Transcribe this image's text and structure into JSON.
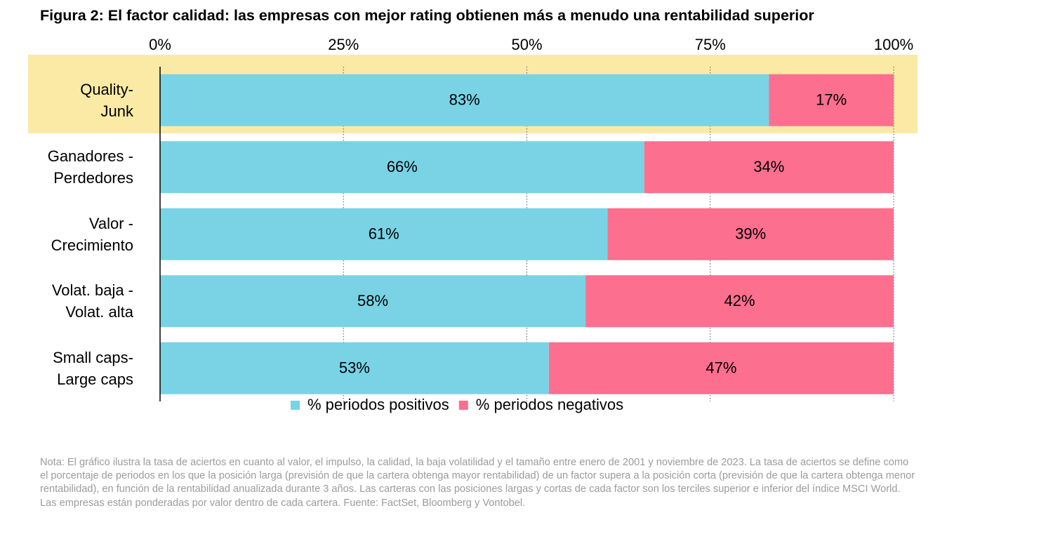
{
  "chart_data": {
    "type": "stacked-bar-horizontal",
    "title": "Figura 2: El factor calidad: las empresas con mejor rating obtienen más a menudo una rentabilidad superior",
    "categories": [
      "Quality-\nJunk",
      "Ganadores -\nPerdedores",
      "Valor -\nCrecimiento",
      "Volat. baja  -\nVolat. alta",
      "Small caps-\nLarge caps"
    ],
    "series": [
      {
        "name": "% periodos positivos",
        "color": "#79d3e5",
        "values": [
          83,
          66,
          61,
          58,
          53
        ],
        "value_labels": [
          "83%",
          "66%",
          "61%",
          "58%",
          "53%"
        ]
      },
      {
        "name": "% periodos negativos",
        "color": "#fc6f8e",
        "values": [
          17,
          34,
          39,
          42,
          47
        ],
        "value_labels": [
          "17%",
          "34%",
          "39%",
          "42%",
          "47%"
        ]
      }
    ],
    "xlim": [
      0,
      100
    ],
    "xticks": [
      {
        "value": 0,
        "label": "0%"
      },
      {
        "value": 25,
        "label": "25%"
      },
      {
        "value": 50,
        "label": "50%"
      },
      {
        "value": 75,
        "label": "75%"
      },
      {
        "value": 100,
        "label": "100%"
      }
    ],
    "grid": true,
    "note": "Nota: El gráfico ilustra la tasa de aciertos en cuanto al valor, el impulso, la calidad, la baja volatilidad y el tamaño entre enero de 2001 y noviembre de 2023. La tasa de aciertos se define como el porcentaje de periodos en los que la posición larga (previsión de que la cartera obtenga mayor rentabilidad) de un factor supera a la posición corta (previsión de que la cartera obtenga menor rentabilidad), en función de la rentabilidad anualizada durante 3 años. Las carteras con las posiciones largas y cortas de cada factor son los terciles superior e inferior del índice MSCI World. Las empresas están ponderadas por valor dentro de cada cartera. Fuente: FactSet, Bloomberg y Vontobel."
  }
}
